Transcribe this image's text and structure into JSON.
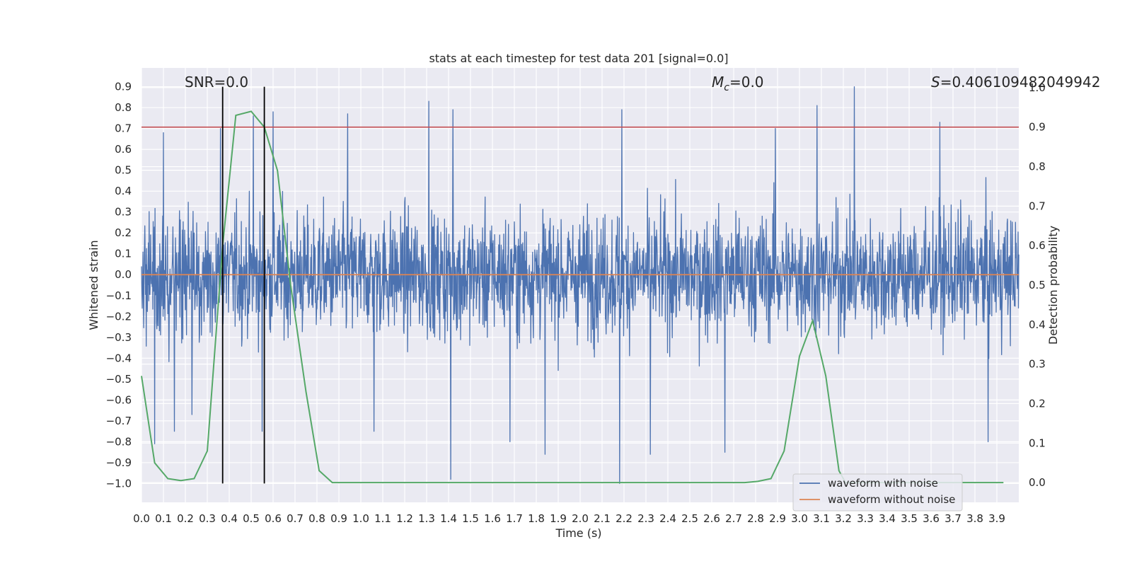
{
  "chart_data": {
    "type": "line",
    "title": "stats at each timestep for test data 201 [signal=0.0]",
    "xlabel": "Time (s)",
    "ylabel": "Whitened strain",
    "y2label": "Detection probability",
    "xlim": [
      0.0,
      4.0
    ],
    "ylim": [
      -1.09,
      0.99
    ],
    "y2lim": [
      -0.05,
      1.05
    ],
    "x_ticks": [
      "0.0",
      "0.1",
      "0.2",
      "0.3",
      "0.4",
      "0.5",
      "0.6",
      "0.7",
      "0.8",
      "0.9",
      "1.0",
      "1.1",
      "1.2",
      "1.3",
      "1.4",
      "1.5",
      "1.6",
      "1.7",
      "1.8",
      "1.9",
      "2.0",
      "2.1",
      "2.2",
      "2.3",
      "2.4",
      "2.5",
      "2.6",
      "2.7",
      "2.8",
      "2.9",
      "3.0",
      "3.1",
      "3.2",
      "3.3",
      "3.4",
      "3.5",
      "3.6",
      "3.7",
      "3.8",
      "3.9"
    ],
    "y_ticks": [
      "0.9",
      "0.8",
      "0.7",
      "0.6",
      "0.5",
      "0.4",
      "0.3",
      "0.2",
      "0.1",
      "0.0",
      "−0.1",
      "−0.2",
      "−0.3",
      "−0.4",
      "−0.5",
      "−0.6",
      "−0.7",
      "−0.8",
      "−0.9",
      "−1.0"
    ],
    "y2_ticks": [
      "1.0",
      "0.9",
      "0.8",
      "0.7",
      "0.6",
      "0.5",
      "0.4",
      "0.3",
      "0.2",
      "0.1",
      "0.0"
    ],
    "grid": true,
    "legend_position": "lower-right",
    "annotations": {
      "snr": "SNR=0.0",
      "mc_symbol": "M",
      "mc_subscript": "c",
      "mc_value": "=0.0",
      "s_symbol": "S",
      "s_value": "=0.406109482049942"
    },
    "series": [
      {
        "name": "waveform with noise",
        "color": "#4c72b0",
        "axis": "left",
        "description": "dense whitened noise strain, mostly within -0.5..0.5 with spikes to +0.9 and -1.0",
        "spikes": [
          {
            "x": 0.06,
            "y": -0.81
          },
          {
            "x": 0.1,
            "y": 0.68
          },
          {
            "x": 0.15,
            "y": -0.75
          },
          {
            "x": 0.23,
            "y": -0.67
          },
          {
            "x": 0.36,
            "y": 0.7
          },
          {
            "x": 0.51,
            "y": 0.76
          },
          {
            "x": 0.55,
            "y": -0.75
          },
          {
            "x": 0.6,
            "y": 0.78
          },
          {
            "x": 0.94,
            "y": 0.77
          },
          {
            "x": 1.06,
            "y": -0.75
          },
          {
            "x": 1.31,
            "y": 0.83
          },
          {
            "x": 1.41,
            "y": -0.98
          },
          {
            "x": 1.42,
            "y": 0.79
          },
          {
            "x": 1.68,
            "y": -0.8
          },
          {
            "x": 1.84,
            "y": -0.86
          },
          {
            "x": 2.18,
            "y": -1.0
          },
          {
            "x": 2.19,
            "y": 0.79
          },
          {
            "x": 2.32,
            "y": -0.86
          },
          {
            "x": 2.66,
            "y": -0.85
          },
          {
            "x": 2.89,
            "y": 0.7
          },
          {
            "x": 3.08,
            "y": 0.81
          },
          {
            "x": 3.25,
            "y": 0.9
          },
          {
            "x": 3.64,
            "y": 0.73
          },
          {
            "x": 3.86,
            "y": -0.8
          }
        ]
      },
      {
        "name": "waveform without noise",
        "color": "#dd8452",
        "axis": "left",
        "x": [
          0.0,
          4.0
        ],
        "y": [
          0.0,
          0.0
        ]
      },
      {
        "color": "#55a868",
        "axis": "right",
        "x": [
          0.0,
          0.06,
          0.12,
          0.18,
          0.24,
          0.3,
          0.37,
          0.43,
          0.5,
          0.56,
          0.62,
          0.68,
          0.75,
          0.81,
          0.87,
          0.93,
          1.0,
          1.5,
          2.0,
          2.5,
          2.75,
          2.81,
          2.87,
          2.93,
          3.0,
          3.06,
          3.12,
          3.18,
          3.21,
          3.3,
          3.93
        ],
        "y": [
          0.27,
          0.05,
          0.01,
          0.005,
          0.01,
          0.08,
          0.6,
          0.93,
          0.94,
          0.9,
          0.79,
          0.5,
          0.23,
          0.03,
          0.0,
          0.0,
          0.0,
          0.0,
          0.0,
          0.0,
          0.0,
          0.003,
          0.01,
          0.08,
          0.32,
          0.41,
          0.27,
          0.03,
          0.0,
          0.0,
          0.0
        ]
      }
    ],
    "hlines": [
      {
        "axis": "right",
        "y": 0.9,
        "color": "#c44e52"
      }
    ],
    "vlines": [
      {
        "x": 0.37,
        "y_from": -1.0,
        "y_to": 0.9,
        "color": "#000000"
      },
      {
        "x": 0.56,
        "y_from": -1.0,
        "y_to": 0.9,
        "color": "#000000"
      }
    ],
    "legend": [
      "waveform with noise",
      "waveform without noise"
    ]
  }
}
